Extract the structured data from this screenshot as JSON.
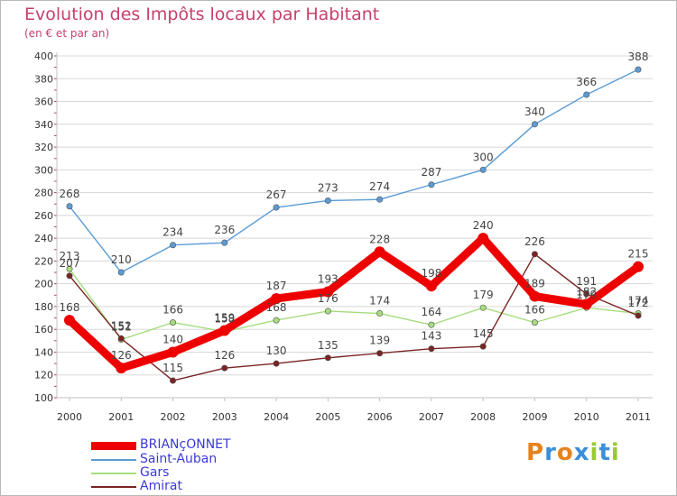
{
  "header": {
    "title": "Evolution des Impôts locaux par Habitant",
    "subtitle": "(en € et par an)"
  },
  "colors": {
    "title": "#c8406a",
    "axis": "#c0c0c0",
    "grid": "#d8d8d8",
    "tick_label": "#333333",
    "value_label": "#444444",
    "legend_text": "#3a3ad8"
  },
  "logo": {
    "text": "Proxiti",
    "letters": [
      "P",
      "r",
      "o",
      "x",
      "i",
      "t",
      "i"
    ],
    "colors": [
      "#e7821d",
      "#3b8fd9",
      "#e7821d",
      "#3b8fd9",
      "#9bc935",
      "#3b8fd9",
      "#9bc935"
    ]
  },
  "chart_data": {
    "type": "line",
    "title": "Evolution des Impôts locaux par Habitant",
    "subtitle": "(en € et par an)",
    "xlabel": "",
    "ylabel": "",
    "categories": [
      "2000",
      "2001",
      "2002",
      "2003",
      "2004",
      "2005",
      "2006",
      "2007",
      "2008",
      "2009",
      "2010",
      "2011"
    ],
    "ylim": [
      100,
      400
    ],
    "yticks": [
      100,
      120,
      140,
      160,
      180,
      200,
      220,
      240,
      260,
      280,
      300,
      320,
      340,
      360,
      380,
      400
    ],
    "grid": "horizontal",
    "legend_position": "bottom-left",
    "series": [
      {
        "name": "BRIANçONNET",
        "color": "#ee0000",
        "values": [
          168,
          126,
          140,
          159,
          187,
          193,
          228,
          198,
          240,
          189,
          182,
          215
        ]
      },
      {
        "name": "Saint-Auban",
        "color": "#5b9bd5",
        "values": [
          268,
          210,
          234,
          236,
          267,
          273,
          274,
          287,
          300,
          340,
          366,
          388
        ]
      },
      {
        "name": "Gars",
        "color": "#a6dc7e",
        "values": [
          213,
          151,
          166,
          158,
          168,
          176,
          174,
          164,
          179,
          166,
          179,
          174
        ]
      },
      {
        "name": "Amirat",
        "color": "#7a2424",
        "values": [
          207,
          152,
          115,
          126,
          130,
          135,
          139,
          143,
          145,
          226,
          191,
          172
        ]
      }
    ]
  }
}
